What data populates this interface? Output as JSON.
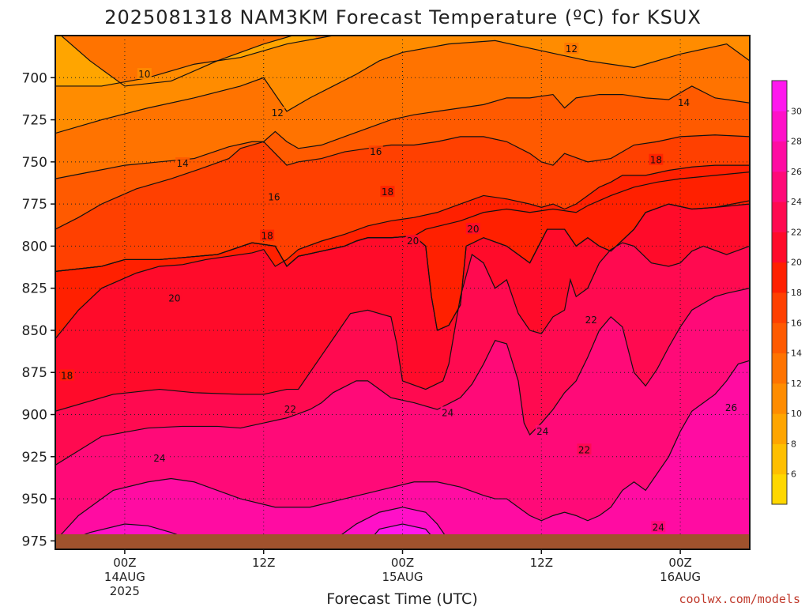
{
  "chart_data": {
    "type": "heatmap",
    "title": "2025081318 NAM3KM Forecast Temperature (ºC) for KSUX",
    "xlabel": "Forecast Time (UTC)",
    "ylabel": "",
    "credit": "coolwx.com/models",
    "x_ticks": [
      {
        "hour": 6,
        "lines": [
          "00Z",
          "14AUG",
          "2025"
        ]
      },
      {
        "hour": 18,
        "lines": [
          "12Z"
        ]
      },
      {
        "hour": 30,
        "lines": [
          "00Z",
          "15AUG"
        ]
      },
      {
        "hour": 42,
        "lines": [
          "12Z"
        ]
      },
      {
        "hour": 54,
        "lines": [
          "00Z",
          "16AUG"
        ]
      }
    ],
    "x_range_hours": [
      0,
      60
    ],
    "y_ticks": [
      700,
      725,
      750,
      775,
      800,
      825,
      850,
      875,
      900,
      925,
      950,
      975
    ],
    "y_range_hpa": [
      675,
      980
    ],
    "ground_level_hpa": 975,
    "colorbar": {
      "ticks": [
        6,
        8,
        10,
        12,
        14,
        16,
        18,
        20,
        22,
        24,
        26,
        28,
        30
      ],
      "levels": [
        4,
        6,
        8,
        10,
        12,
        14,
        16,
        18,
        20,
        22,
        24,
        26,
        28,
        30,
        32
      ],
      "colors": [
        "#ffd700",
        "#ffbf00",
        "#ffa500",
        "#ff8c00",
        "#ff7300",
        "#ff5a00",
        "#ff4000",
        "#ff2000",
        "#ff0b2a",
        "#ff0a50",
        "#ff0a78",
        "#ff0ca2",
        "#ff10c8",
        "#ff18ee"
      ]
    },
    "contour_labels": [
      {
        "value": "10",
        "hour": 7.7,
        "hpa": 698
      },
      {
        "value": "12",
        "hour": 19.2,
        "hpa": 721
      },
      {
        "value": "12",
        "hour": 44.6,
        "hpa": 683
      },
      {
        "value": "14",
        "hour": 11.0,
        "hpa": 751
      },
      {
        "value": "14",
        "hour": 54.3,
        "hpa": 715
      },
      {
        "value": "16",
        "hour": 18.9,
        "hpa": 771
      },
      {
        "value": "16",
        "hour": 27.7,
        "hpa": 744
      },
      {
        "value": "18",
        "hour": 18.3,
        "hpa": 794
      },
      {
        "value": "18",
        "hour": 28.7,
        "hpa": 768
      },
      {
        "value": "18",
        "hour": 51.9,
        "hpa": 749
      },
      {
        "value": "18",
        "hour": 1.0,
        "hpa": 877
      },
      {
        "value": "20",
        "hour": 10.3,
        "hpa": 831
      },
      {
        "value": "20",
        "hour": 30.9,
        "hpa": 797
      },
      {
        "value": "20",
        "hour": 36.1,
        "hpa": 790
      },
      {
        "value": "22",
        "hour": 20.3,
        "hpa": 897
      },
      {
        "value": "22",
        "hour": 46.3,
        "hpa": 844
      },
      {
        "value": "22",
        "hour": 45.7,
        "hpa": 921
      },
      {
        "value": "24",
        "hour": 9.0,
        "hpa": 926
      },
      {
        "value": "24",
        "hour": 33.9,
        "hpa": 899
      },
      {
        "value": "24",
        "hour": 42.1,
        "hpa": 910
      },
      {
        "value": "24",
        "hour": 52.1,
        "hpa": 967
      },
      {
        "value": "26",
        "hour": 58.4,
        "hpa": 896
      }
    ],
    "field_regions": [
      {
        "value": 20,
        "points": [
          [
            0,
            815
          ],
          [
            4,
            812
          ],
          [
            6,
            808
          ],
          [
            9,
            808
          ],
          [
            14,
            805
          ],
          [
            17,
            798
          ],
          [
            19,
            800
          ],
          [
            20,
            812
          ],
          [
            21,
            806
          ],
          [
            23,
            803
          ],
          [
            25,
            800
          ],
          [
            26,
            797
          ],
          [
            27,
            795
          ],
          [
            29,
            795
          ],
          [
            31,
            794
          ],
          [
            32,
            800
          ],
          [
            32.5,
            830
          ],
          [
            33,
            850
          ],
          [
            34,
            847
          ],
          [
            35,
            835
          ],
          [
            35.5,
            800
          ],
          [
            37,
            795
          ],
          [
            39,
            800
          ],
          [
            41,
            810
          ],
          [
            42.5,
            790
          ],
          [
            44,
            790
          ],
          [
            45,
            800
          ],
          [
            46,
            795
          ],
          [
            47,
            800
          ],
          [
            48,
            803
          ],
          [
            50,
            790
          ],
          [
            51,
            780
          ],
          [
            53,
            775
          ],
          [
            55,
            778
          ],
          [
            57,
            777
          ],
          [
            60,
            773
          ],
          [
            60,
            980
          ],
          [
            0,
            980
          ]
        ]
      },
      {
        "value": 22,
        "points": [
          [
            0,
            898
          ],
          [
            5,
            888
          ],
          [
            9,
            885
          ],
          [
            12,
            887
          ],
          [
            16,
            888
          ],
          [
            18,
            888
          ],
          [
            20,
            885
          ],
          [
            21,
            885
          ],
          [
            23,
            865
          ],
          [
            24,
            855
          ],
          [
            25.5,
            840
          ],
          [
            27,
            838
          ],
          [
            28,
            840
          ],
          [
            29,
            842
          ],
          [
            29.5,
            858
          ],
          [
            30,
            880
          ],
          [
            32,
            885
          ],
          [
            33.5,
            880
          ],
          [
            34,
            870
          ],
          [
            35,
            830
          ],
          [
            36,
            805
          ],
          [
            37,
            810
          ],
          [
            38,
            825
          ],
          [
            39,
            820
          ],
          [
            40,
            840
          ],
          [
            41,
            850
          ],
          [
            42,
            852
          ],
          [
            43,
            842
          ],
          [
            44,
            838
          ],
          [
            44.5,
            820
          ],
          [
            45,
            830
          ],
          [
            46,
            825
          ],
          [
            47,
            810
          ],
          [
            48,
            802
          ],
          [
            49,
            798
          ],
          [
            50,
            800
          ],
          [
            51.5,
            810
          ],
          [
            53,
            812
          ],
          [
            54,
            810
          ],
          [
            55,
            803
          ],
          [
            56,
            800
          ],
          [
            58,
            805
          ],
          [
            60,
            800
          ],
          [
            60,
            980
          ],
          [
            0,
            980
          ]
        ]
      },
      {
        "value": 24,
        "points": [
          [
            0,
            930
          ],
          [
            4,
            913
          ],
          [
            8,
            908
          ],
          [
            11,
            907
          ],
          [
            14,
            907
          ],
          [
            16,
            908
          ],
          [
            18,
            905
          ],
          [
            20,
            902
          ],
          [
            22,
            897
          ],
          [
            23,
            893
          ],
          [
            24,
            887
          ],
          [
            26,
            880
          ],
          [
            27,
            880
          ],
          [
            28,
            885
          ],
          [
            29,
            890
          ],
          [
            31,
            893
          ],
          [
            33,
            897
          ],
          [
            35,
            890
          ],
          [
            36,
            882
          ],
          [
            37,
            870
          ],
          [
            38,
            856
          ],
          [
            39,
            858
          ],
          [
            40,
            880
          ],
          [
            40.5,
            905
          ],
          [
            41,
            912
          ],
          [
            42,
            905
          ],
          [
            43,
            897
          ],
          [
            44,
            887
          ],
          [
            45,
            880
          ],
          [
            46,
            866
          ],
          [
            47,
            850
          ],
          [
            48,
            842
          ],
          [
            49,
            848
          ],
          [
            50,
            875
          ],
          [
            51,
            883
          ],
          [
            52,
            873
          ],
          [
            53,
            860
          ],
          [
            54,
            848
          ],
          [
            55,
            838
          ],
          [
            57,
            830
          ],
          [
            58,
            828
          ],
          [
            60,
            825
          ],
          [
            60,
            980
          ],
          [
            0,
            980
          ]
        ]
      },
      {
        "value": 26,
        "points": [
          [
            0,
            975
          ],
          [
            2,
            960
          ],
          [
            5,
            945
          ],
          [
            8,
            940
          ],
          [
            10,
            938
          ],
          [
            12,
            940
          ],
          [
            14,
            945
          ],
          [
            16,
            950
          ],
          [
            19,
            955
          ],
          [
            22,
            955
          ],
          [
            25,
            950
          ],
          [
            28,
            945
          ],
          [
            31,
            940
          ],
          [
            33,
            940
          ],
          [
            35,
            943
          ],
          [
            37,
            948
          ],
          [
            38,
            950
          ],
          [
            39,
            950
          ],
          [
            40,
            955
          ],
          [
            41,
            960
          ],
          [
            42,
            963
          ],
          [
            43,
            960
          ],
          [
            44,
            958
          ],
          [
            45,
            960
          ],
          [
            46,
            963
          ],
          [
            47,
            960
          ],
          [
            48,
            955
          ],
          [
            49,
            945
          ],
          [
            50,
            940
          ],
          [
            51,
            945
          ],
          [
            52,
            935
          ],
          [
            53,
            925
          ],
          [
            54,
            910
          ],
          [
            55,
            898
          ],
          [
            56,
            893
          ],
          [
            57,
            888
          ],
          [
            58,
            880
          ],
          [
            59,
            870
          ],
          [
            60,
            868
          ],
          [
            60,
            980
          ],
          [
            0,
            980
          ]
        ]
      },
      {
        "value": 28,
        "points": [
          [
            0,
            978
          ],
          [
            3,
            970
          ],
          [
            6,
            965
          ],
          [
            8,
            966
          ],
          [
            10,
            970
          ],
          [
            12,
            975
          ],
          [
            24,
            975
          ],
          [
            26,
            965
          ],
          [
            28,
            958
          ],
          [
            30,
            955
          ],
          [
            32,
            958
          ],
          [
            33,
            965
          ],
          [
            34,
            975
          ],
          [
            0,
            978
          ]
        ]
      },
      {
        "value": 30,
        "points": [
          [
            27,
            976
          ],
          [
            28,
            968
          ],
          [
            30,
            965
          ],
          [
            32,
            968
          ],
          [
            33,
            976
          ]
        ]
      },
      {
        "value": 18,
        "points": [
          [
            0,
            855
          ],
          [
            2,
            838
          ],
          [
            4,
            825
          ],
          [
            7,
            816
          ],
          [
            9,
            812
          ],
          [
            11,
            811
          ],
          [
            13,
            808
          ],
          [
            15,
            806
          ],
          [
            17,
            804
          ],
          [
            18,
            802
          ],
          [
            19,
            812
          ],
          [
            20,
            808
          ],
          [
            21,
            802
          ],
          [
            23,
            797
          ],
          [
            25,
            793
          ],
          [
            27,
            788
          ],
          [
            29,
            785
          ],
          [
            31,
            783
          ],
          [
            33,
            780
          ],
          [
            35,
            775
          ],
          [
            37,
            770
          ],
          [
            39,
            772
          ],
          [
            41,
            775
          ],
          [
            42,
            777
          ],
          [
            43,
            775
          ],
          [
            44,
            778
          ],
          [
            45,
            775
          ],
          [
            46,
            770
          ],
          [
            47,
            765
          ],
          [
            48,
            762
          ],
          [
            49,
            758
          ],
          [
            51,
            758
          ],
          [
            53,
            755
          ],
          [
            55,
            753
          ],
          [
            57,
            752
          ],
          [
            60,
            752
          ],
          [
            60,
            775
          ],
          [
            57,
            777
          ],
          [
            55,
            778
          ],
          [
            53,
            775
          ],
          [
            51,
            780
          ],
          [
            50,
            790
          ],
          [
            48,
            803
          ],
          [
            47,
            800
          ],
          [
            46,
            795
          ],
          [
            45,
            800
          ],
          [
            44,
            790
          ],
          [
            42.5,
            790
          ],
          [
            41,
            810
          ],
          [
            39,
            800
          ],
          [
            37,
            795
          ],
          [
            35.5,
            800
          ],
          [
            35,
            835
          ],
          [
            34,
            847
          ],
          [
            33,
            850
          ],
          [
            32.5,
            830
          ],
          [
            32,
            800
          ],
          [
            31,
            794
          ],
          [
            29,
            795
          ],
          [
            27,
            795
          ],
          [
            26,
            797
          ],
          [
            25,
            800
          ],
          [
            23,
            803
          ],
          [
            21,
            806
          ],
          [
            20,
            812
          ],
          [
            19,
            800
          ],
          [
            17,
            798
          ],
          [
            14,
            805
          ],
          [
            9,
            808
          ],
          [
            6,
            808
          ],
          [
            4,
            812
          ],
          [
            0,
            815
          ]
        ]
      }
    ]
  }
}
